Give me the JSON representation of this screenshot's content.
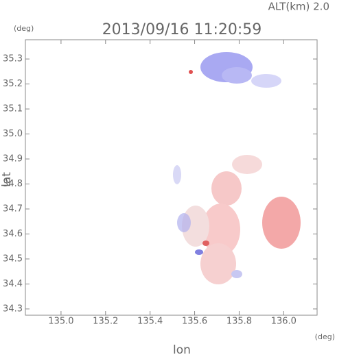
{
  "chart_data": {
    "type": "map",
    "title": "2013/09/16 11:20:59",
    "annotation": "ALT(km)  2.0",
    "x_label": "lon",
    "y_label": "lat",
    "x_unit": "(deg)",
    "y_unit": "(deg)",
    "xlim": [
      134.84,
      136.15
    ],
    "ylim": [
      34.275,
      35.377
    ],
    "xticks": [
      {
        "value": 135,
        "label": "135.0"
      },
      135.2,
      135.4,
      135.6,
      135.8,
      {
        "value": 136,
        "label": "136.0"
      }
    ],
    "yticks": [
      34.3,
      34.4,
      34.5,
      34.6,
      34.7,
      34.8,
      34.9,
      {
        "value": 35,
        "label": "35.0"
      },
      35.1,
      35.2,
      35.3
    ]
  }
}
